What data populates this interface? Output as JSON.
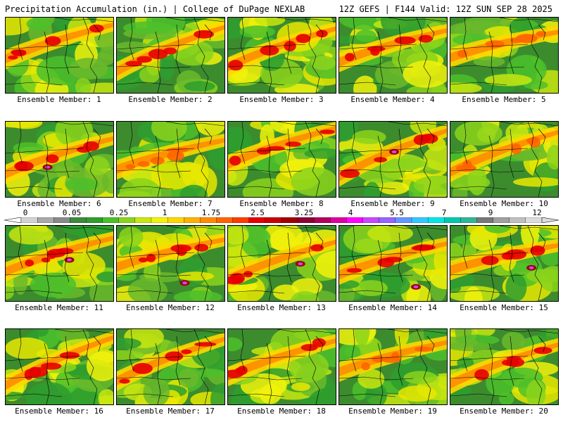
{
  "header": {
    "title": "Precipitation Accumulation (in.) | College of DuPage NEXLAB",
    "run_info": "12Z GEFS | F144 Valid: 12Z SUN SEP 28 2025"
  },
  "members": [
    {
      "label": "Ensemble Member: 1",
      "peak": "red"
    },
    {
      "label": "Ensemble Member: 2",
      "peak": "red"
    },
    {
      "label": "Ensemble Member: 3",
      "peak": "red"
    },
    {
      "label": "Ensemble Member: 4",
      "peak": "red"
    },
    {
      "label": "Ensemble Member: 5",
      "peak": "orange"
    },
    {
      "label": "Ensemble Member: 6",
      "peak": "purple"
    },
    {
      "label": "Ensemble Member: 7",
      "peak": "orange"
    },
    {
      "label": "Ensemble Member: 8",
      "peak": "red"
    },
    {
      "label": "Ensemble Member: 9",
      "peak": "purple"
    },
    {
      "label": "Ensemble Member: 10",
      "peak": "orange"
    },
    {
      "label": "Ensemble Member: 11",
      "peak": "purple"
    },
    {
      "label": "Ensemble Member: 12",
      "peak": "purple"
    },
    {
      "label": "Ensemble Member: 13",
      "peak": "purple"
    },
    {
      "label": "Ensemble Member: 14",
      "peak": "purple"
    },
    {
      "label": "Ensemble Member: 15",
      "peak": "purple"
    },
    {
      "label": "Ensemble Member: 16",
      "peak": "red"
    },
    {
      "label": "Ensemble Member: 17",
      "peak": "red"
    },
    {
      "label": "Ensemble Member: 18",
      "peak": "red"
    },
    {
      "label": "Ensemble Member: 19",
      "peak": "orange"
    },
    {
      "label": "Ensemble Member: 20",
      "peak": "red"
    }
  ],
  "colorbar": {
    "ticks": [
      "0",
      "0.05",
      "0.25",
      "1",
      "1.75",
      "2.5",
      "3.25",
      "4",
      "5.5",
      "7",
      "9",
      "12"
    ],
    "colors": [
      "#d3d3d3",
      "#a9a9a9",
      "#8a8a8a",
      "#3c8a3c",
      "#2e9e2e",
      "#4cbf2a",
      "#8bd41c",
      "#c8e60f",
      "#f2f20a",
      "#ffd700",
      "#ffb000",
      "#ff8c00",
      "#ff6400",
      "#ff3c00",
      "#e60000",
      "#c80000",
      "#a00000",
      "#8c0032",
      "#b4005a",
      "#dc00a0",
      "#ff00ff",
      "#c846ff",
      "#9664ff",
      "#6496ff",
      "#32c8ff",
      "#00e6e6",
      "#00c8aa",
      "#32b496",
      "#787878",
      "#a0a0a0",
      "#c0c0c0",
      "#dcdcdc"
    ]
  }
}
